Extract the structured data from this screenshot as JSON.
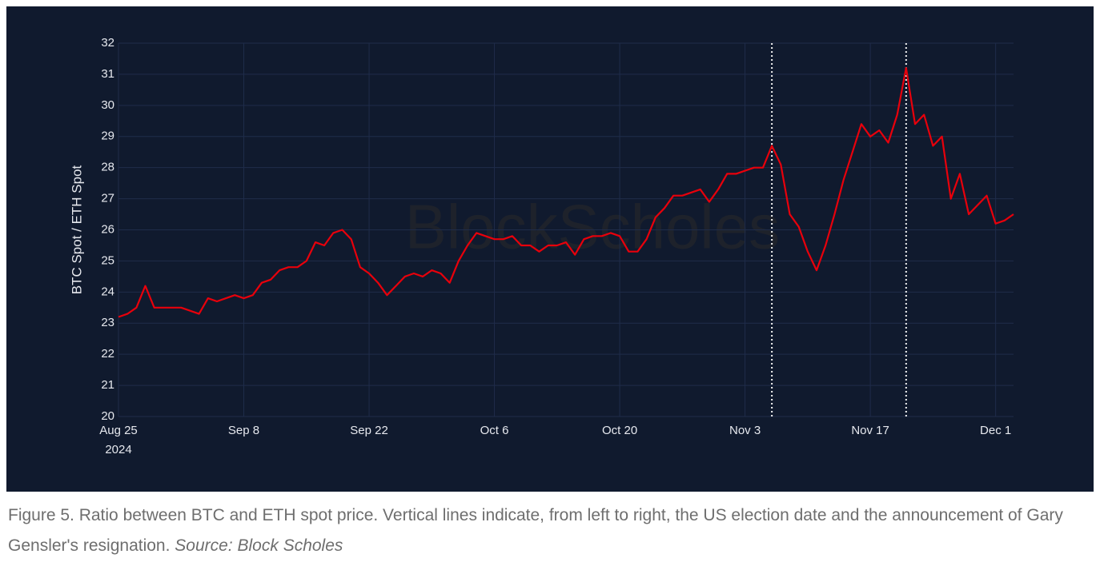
{
  "chart_data": {
    "type": "line",
    "ylabel": "BTC Spot / ETH Spot",
    "watermark": "BlockScholes",
    "x": [
      "2024-08-25",
      "2024-08-26",
      "2024-08-27",
      "2024-08-28",
      "2024-08-29",
      "2024-08-30",
      "2024-08-31",
      "2024-09-01",
      "2024-09-02",
      "2024-09-03",
      "2024-09-04",
      "2024-09-05",
      "2024-09-06",
      "2024-09-07",
      "2024-09-08",
      "2024-09-09",
      "2024-09-10",
      "2024-09-11",
      "2024-09-12",
      "2024-09-13",
      "2024-09-14",
      "2024-09-15",
      "2024-09-16",
      "2024-09-17",
      "2024-09-18",
      "2024-09-19",
      "2024-09-20",
      "2024-09-21",
      "2024-09-22",
      "2024-09-23",
      "2024-09-24",
      "2024-09-25",
      "2024-09-26",
      "2024-09-27",
      "2024-09-28",
      "2024-09-29",
      "2024-09-30",
      "2024-10-01",
      "2024-10-02",
      "2024-10-03",
      "2024-10-04",
      "2024-10-05",
      "2024-10-06",
      "2024-10-07",
      "2024-10-08",
      "2024-10-09",
      "2024-10-10",
      "2024-10-11",
      "2024-10-12",
      "2024-10-13",
      "2024-10-14",
      "2024-10-15",
      "2024-10-16",
      "2024-10-17",
      "2024-10-18",
      "2024-10-19",
      "2024-10-20",
      "2024-10-21",
      "2024-10-22",
      "2024-10-23",
      "2024-10-24",
      "2024-10-25",
      "2024-10-26",
      "2024-10-27",
      "2024-10-28",
      "2024-10-29",
      "2024-10-30",
      "2024-10-31",
      "2024-11-01",
      "2024-11-02",
      "2024-11-03",
      "2024-11-04",
      "2024-11-05",
      "2024-11-06",
      "2024-11-07",
      "2024-11-08",
      "2024-11-09",
      "2024-11-10",
      "2024-11-11",
      "2024-11-12",
      "2024-11-13",
      "2024-11-14",
      "2024-11-15",
      "2024-11-16",
      "2024-11-17",
      "2024-11-18",
      "2024-11-19",
      "2024-11-20",
      "2024-11-21",
      "2024-11-22",
      "2024-11-23",
      "2024-11-24",
      "2024-11-25",
      "2024-11-26",
      "2024-11-27",
      "2024-11-28",
      "2024-11-29",
      "2024-11-30",
      "2024-12-01",
      "2024-12-02",
      "2024-12-03"
    ],
    "values": [
      23.2,
      23.3,
      23.5,
      24.2,
      23.5,
      23.5,
      23.5,
      23.5,
      23.4,
      23.3,
      23.8,
      23.7,
      23.8,
      23.9,
      23.8,
      23.9,
      24.3,
      24.4,
      24.7,
      24.8,
      24.8,
      25.0,
      25.6,
      25.5,
      25.9,
      26.0,
      25.7,
      24.8,
      24.6,
      24.3,
      23.9,
      24.2,
      24.5,
      24.6,
      24.5,
      24.7,
      24.6,
      24.3,
      25.0,
      25.5,
      25.9,
      25.8,
      25.7,
      25.7,
      25.8,
      25.5,
      25.5,
      25.3,
      25.5,
      25.5,
      25.6,
      25.2,
      25.7,
      25.8,
      25.8,
      25.9,
      25.8,
      25.3,
      25.3,
      25.7,
      26.4,
      26.7,
      27.1,
      27.1,
      27.2,
      27.3,
      26.9,
      27.3,
      27.8,
      27.8,
      27.9,
      28.0,
      28.0,
      28.7,
      28.1,
      26.5,
      26.1,
      25.3,
      24.7,
      25.5,
      26.5,
      27.6,
      28.5,
      29.4,
      29.0,
      29.2,
      28.8,
      29.7,
      31.2,
      29.4,
      29.7,
      28.7,
      29.0,
      27.0,
      27.8,
      26.5,
      26.8,
      27.1,
      26.2,
      26.3,
      26.5
    ],
    "color": "#e8000b",
    "vlines": [
      "2024-11-06",
      "2024-11-21"
    ],
    "xlim": [
      "2024-08-25",
      "2024-12-03"
    ],
    "xticks": [
      {
        "value": "2024-08-25",
        "label": "Aug 25"
      },
      {
        "value": "2024-09-08",
        "label": "Sep 8"
      },
      {
        "value": "2024-09-22",
        "label": "Sep 22"
      },
      {
        "value": "2024-10-06",
        "label": "Oct 6"
      },
      {
        "value": "2024-10-20",
        "label": "Oct 20"
      },
      {
        "value": "2024-11-03",
        "label": "Nov 3"
      },
      {
        "value": "2024-11-17",
        "label": "Nov 17"
      },
      {
        "value": "2024-12-01",
        "label": "Dec 1"
      }
    ],
    "xaxis_year": "2024",
    "ylim": [
      20,
      32
    ],
    "yticks": [
      20,
      21,
      22,
      23,
      24,
      25,
      26,
      27,
      28,
      29,
      30,
      31,
      32
    ],
    "grid": true
  },
  "caption": {
    "text": "Figure 5. Ratio between BTC and ETH spot price. Vertical lines indicate, from left to right, the US election date and the announcement of Gary Gensler's resignation.",
    "source": "Source: Block Scholes"
  }
}
